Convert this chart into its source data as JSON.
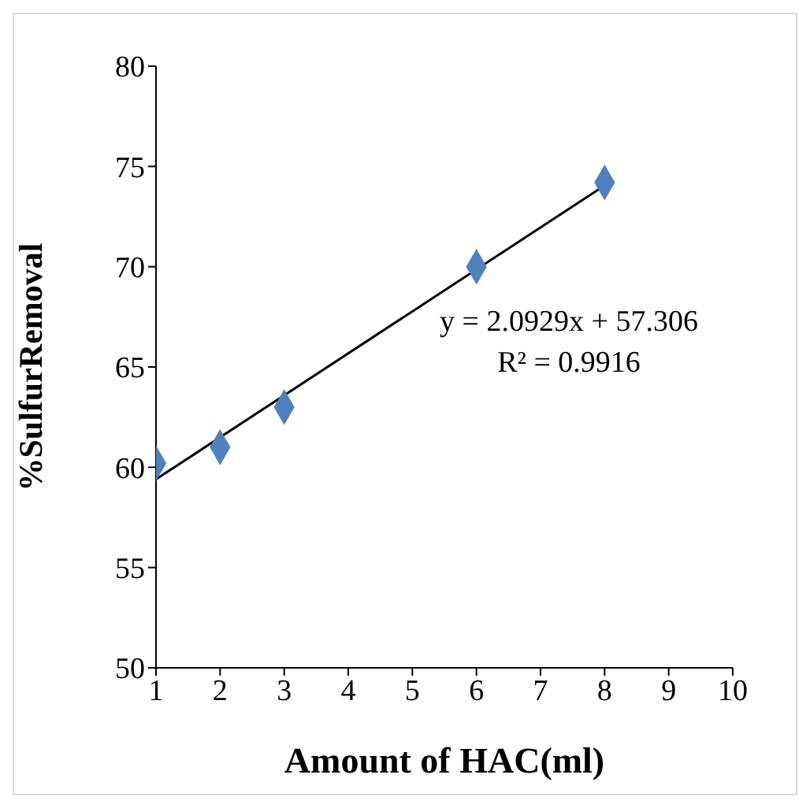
{
  "chart_data": {
    "type": "scatter",
    "xlabel": "Amount of HAC(ml)",
    "ylabel": "%SulfurRemoval",
    "x": [
      1,
      2,
      3,
      6,
      8
    ],
    "series": [
      {
        "color": "#4f81bd",
        "marker": "diamond",
        "values": [
          60.2,
          61.0,
          63.0,
          70.0,
          74.2
        ]
      },
      {
        "type": "line",
        "color": "#000000",
        "x": [
          1,
          8
        ],
        "values": [
          59.4,
          74.05
        ]
      }
    ],
    "xlim": [
      1,
      10
    ],
    "xticks": [
      1,
      2,
      3,
      4,
      5,
      6,
      7,
      8,
      9,
      10
    ],
    "ylim": [
      50,
      80
    ],
    "yticks": [
      50,
      55,
      60,
      65,
      70,
      75,
      80
    ],
    "grid": false,
    "legend": false,
    "annotations": [
      "y = 2.0929x + 57.306",
      "R² = 0.9916"
    ]
  }
}
